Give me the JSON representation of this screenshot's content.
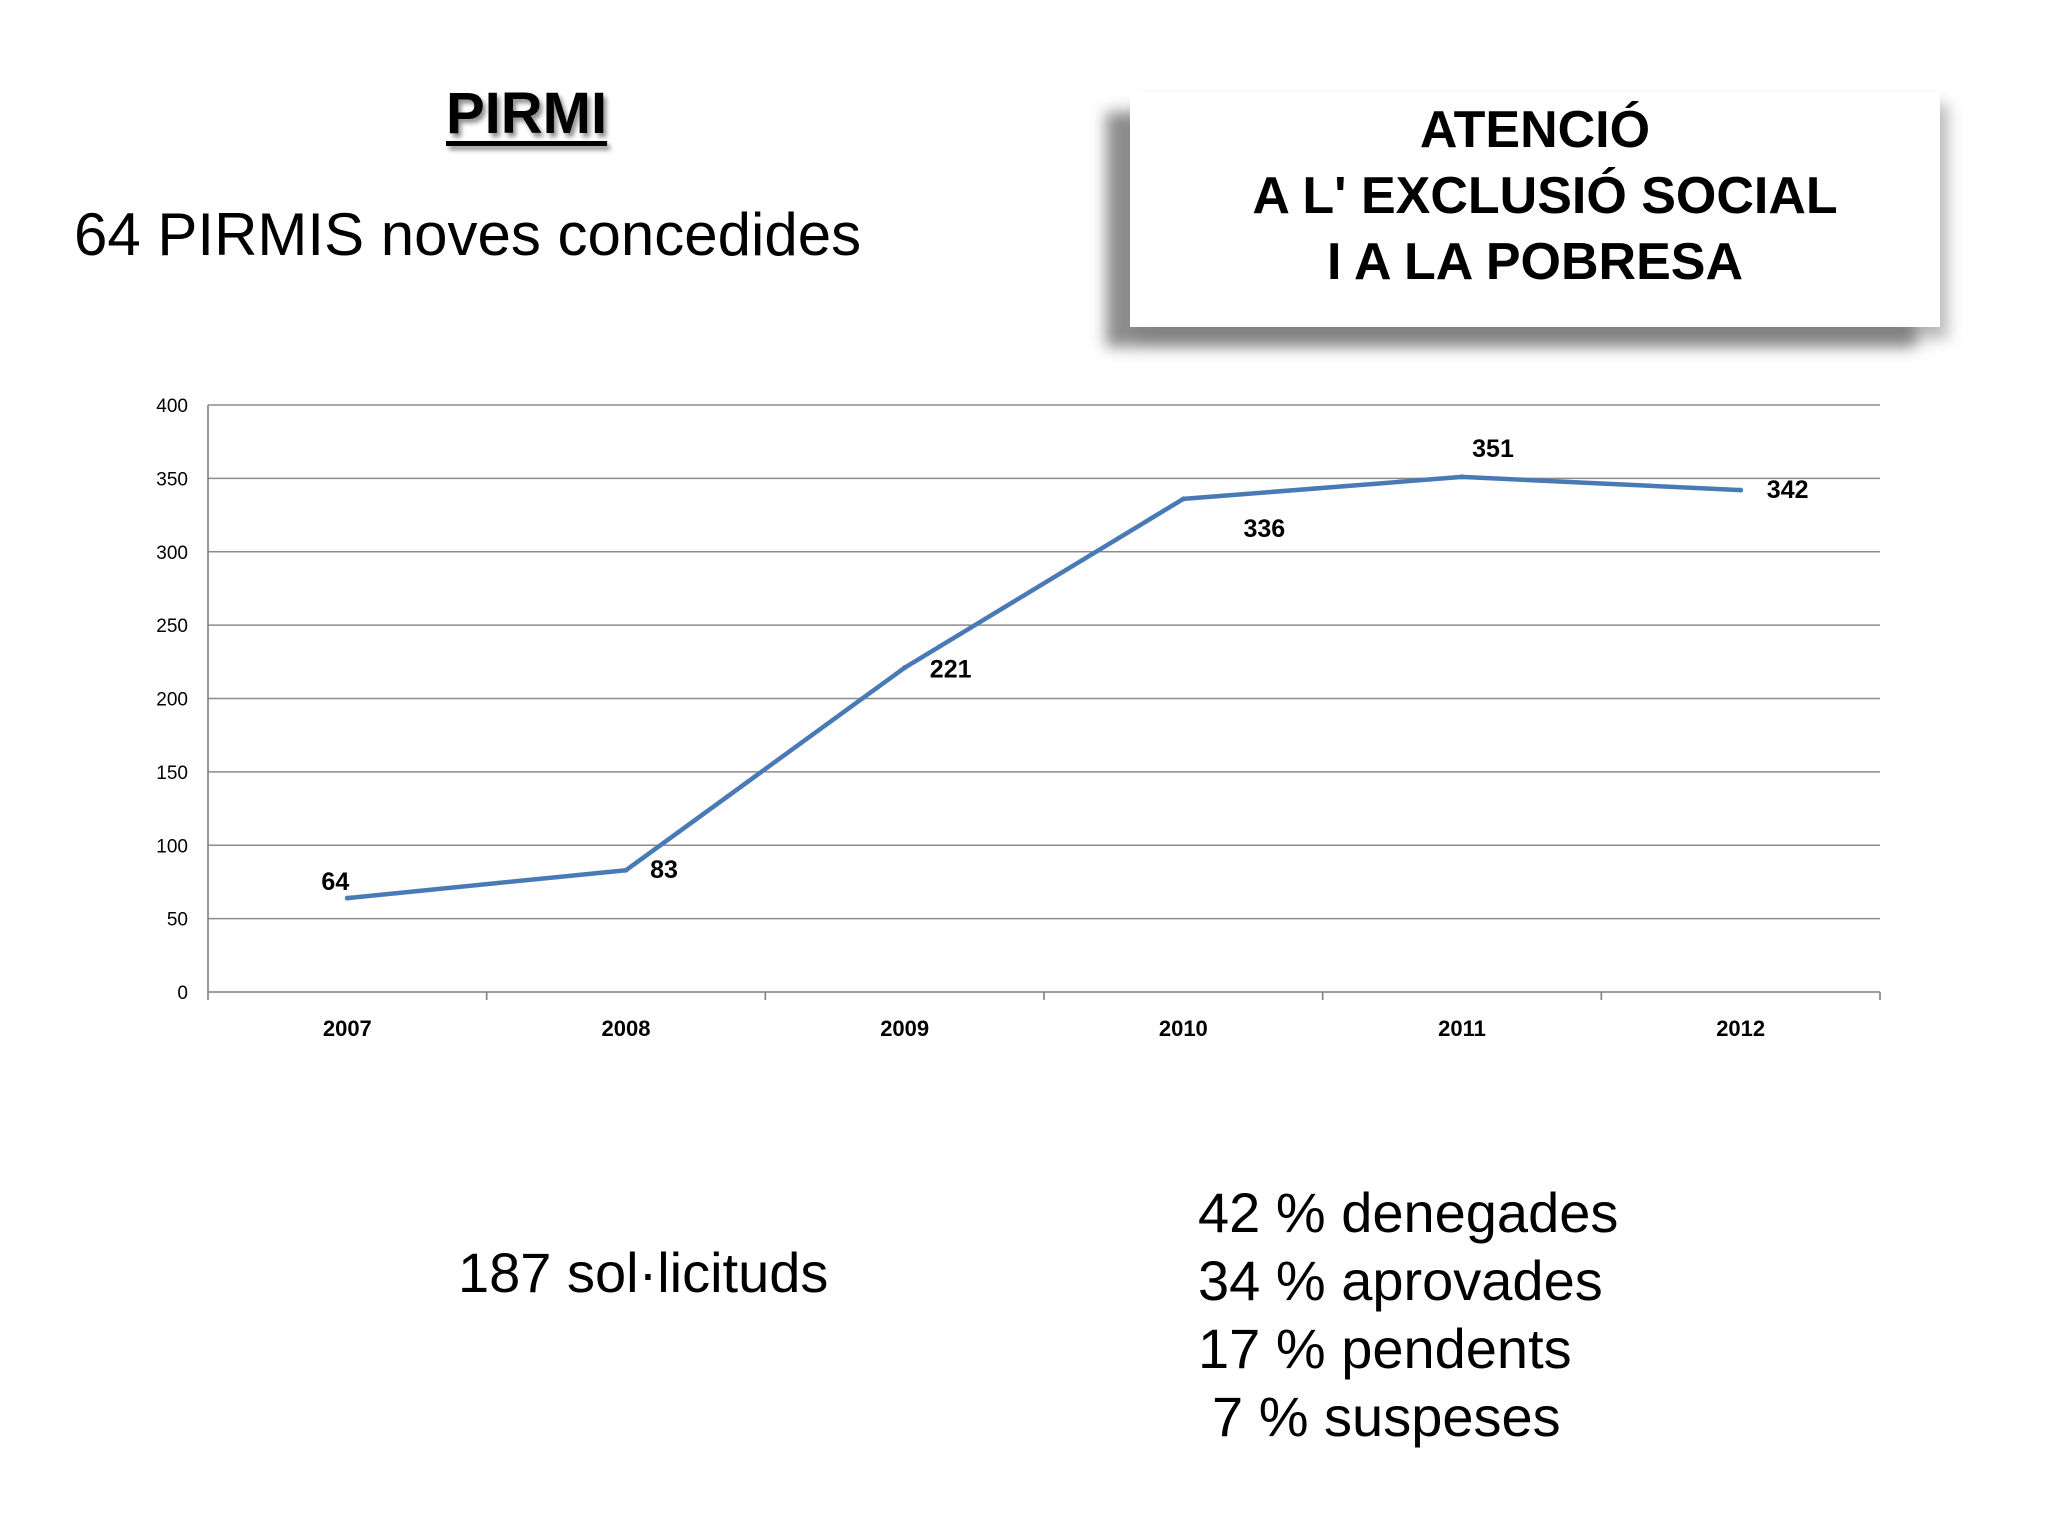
{
  "slide": {
    "title": "PIRMI",
    "subtitle": "64 PIRMIS noves concedides",
    "banner": [
      "ATENCIÓ",
      "A L' EXCLUSIÓ SOCIAL",
      "I A LA POBRESA"
    ],
    "solicituds": "187 sol·licituds",
    "percentages": [
      "42 % denegades",
      "34 % aprovades",
      "17 % pendents",
      "7 % suspeses"
    ]
  },
  "colors": {
    "line": "#4a7ab5",
    "grid": "#8c8c8c",
    "axis": "#7f7f7f"
  },
  "chart_data": {
    "type": "line",
    "categories": [
      "2007",
      "2008",
      "2009",
      "2010",
      "2011",
      "2012"
    ],
    "series": [
      {
        "values": [
          64,
          83,
          221,
          336,
          351,
          342
        ]
      }
    ],
    "data_labels": [
      "64",
      "83",
      "221",
      "336",
      "351",
      "342"
    ],
    "ylim": [
      0,
      400
    ],
    "yticks": [
      "0",
      "50",
      "100",
      "150",
      "200",
      "250",
      "300",
      "350",
      "400"
    ],
    "grid": true,
    "legend": "none",
    "title": "",
    "xlabel": "",
    "ylabel": ""
  }
}
